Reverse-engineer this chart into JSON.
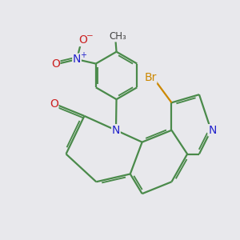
{
  "bg": "#e8e8ec",
  "bond_color": "#4a8a4a",
  "bond_lw": 1.6,
  "atom_colors": {
    "N": "#2222cc",
    "O": "#cc2222",
    "Br": "#cc8800",
    "C": "#4a8a4a"
  }
}
